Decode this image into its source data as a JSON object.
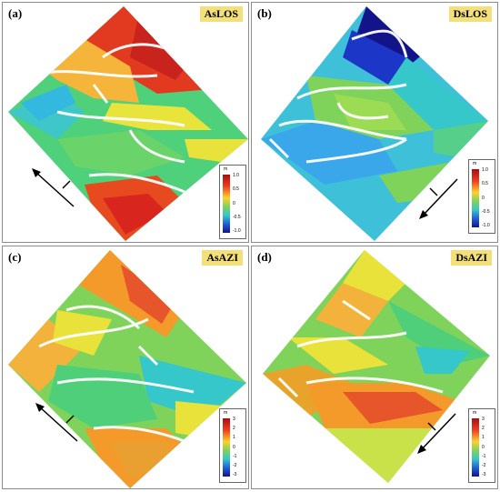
{
  "figure": {
    "panels": [
      {
        "id": "a",
        "letter": "(a)",
        "title": "AsLOS",
        "colorbar": {
          "unit": "m",
          "ticks": [
            "1.0",
            "0.5",
            "0",
            "-0.5",
            "-1.0"
          ]
        },
        "flight_direction": "ascending"
      },
      {
        "id": "b",
        "letter": "(b)",
        "title": "DsLOS",
        "colorbar": {
          "unit": "m",
          "ticks": [
            "1.0",
            "0.5",
            "0",
            "-0.5",
            "-1.0"
          ]
        },
        "flight_direction": "descending"
      },
      {
        "id": "c",
        "letter": "(c)",
        "title": "AsAZI",
        "colorbar": {
          "unit": "m",
          "ticks": [
            "3",
            "2",
            "1",
            "0",
            "-1",
            "-2",
            "-3"
          ]
        },
        "flight_direction": "ascending"
      },
      {
        "id": "d",
        "letter": "(d)",
        "title": "DsAZI",
        "colorbar": {
          "unit": "m",
          "ticks": [
            "3",
            "2",
            "1",
            "0",
            "-1",
            "-2",
            "-3"
          ]
        },
        "flight_direction": "descending"
      }
    ],
    "colors": {
      "panel_border": "#8c8c8c",
      "title_bg": "#f3e07a",
      "jet_red": "#d7261e",
      "jet_orange": "#f39a2b",
      "jet_yellow": "#e9e23a",
      "jet_green": "#7fd35a",
      "jet_cyan": "#35c7c9",
      "jet_blue": "#1f5fd6",
      "jet_navy": "#14148a",
      "decorrelation": "#ffffff"
    }
  }
}
